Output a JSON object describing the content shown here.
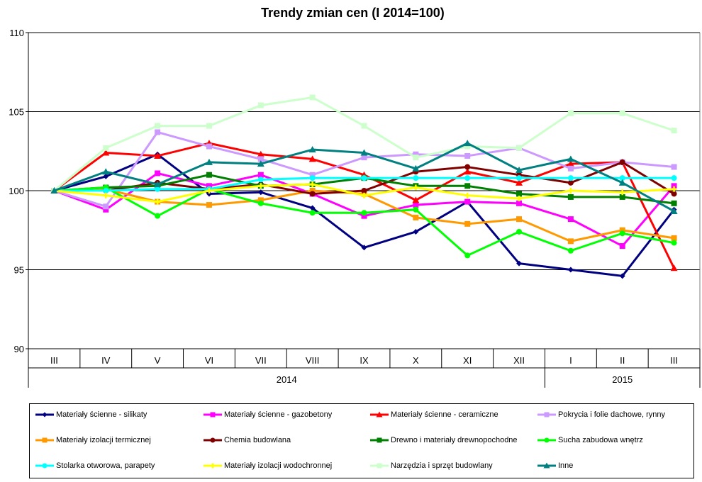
{
  "chart_data": {
    "type": "line",
    "title": "Trendy zmian cen (I 2014=100)",
    "categories": [
      "III",
      "IV",
      "V",
      "VI",
      "VII",
      "VIII",
      "IX",
      "X",
      "XI",
      "XII",
      "I",
      "II",
      "III"
    ],
    "year_labels": [
      {
        "label": "2014",
        "from": 0,
        "to": 9
      },
      {
        "label": "2015",
        "from": 10,
        "to": 12
      }
    ],
    "ylim": [
      90,
      110
    ],
    "yticks": [
      90,
      95,
      100,
      105,
      110
    ],
    "grid": true,
    "legend_position": "bottom",
    "series": [
      {
        "name": "Materiały ścienne - silikaty",
        "color": "#000080",
        "marker": "diamond",
        "values": [
          100,
          100.9,
          102.3,
          99.8,
          99.9,
          98.9,
          96.4,
          97.4,
          99.3,
          95.4,
          95.0,
          94.6,
          98.8
        ]
      },
      {
        "name": "Materiały ścienne - gazobetony",
        "color": "#ff00ff",
        "marker": "square",
        "values": [
          100,
          98.8,
          101.1,
          100.3,
          101.0,
          99.8,
          98.4,
          99.1,
          99.3,
          99.2,
          98.2,
          96.5,
          100.3
        ]
      },
      {
        "name": "Materiały ścienne - ceramiczne",
        "color": "#ff0000",
        "marker": "triangle",
        "values": [
          100,
          102.4,
          102.2,
          103.0,
          102.3,
          102.0,
          101.0,
          99.4,
          101.2,
          100.5,
          101.7,
          101.8,
          95.1
        ]
      },
      {
        "name": "Pokrycia i folie dachowe, rynny",
        "color": "#cc99ff",
        "marker": "square",
        "values": [
          100,
          99.0,
          103.7,
          102.8,
          102.0,
          101.0,
          102.1,
          102.3,
          102.2,
          102.7,
          101.4,
          101.8,
          101.5
        ]
      },
      {
        "name": "Materiały izolacji termicznej",
        "color": "#ff9900",
        "marker": "square",
        "values": [
          100,
          100.1,
          99.3,
          99.1,
          99.4,
          100.0,
          99.8,
          98.3,
          97.9,
          98.2,
          96.8,
          97.5,
          97.0
        ]
      },
      {
        "name": "Chemia budowlana",
        "color": "#800000",
        "marker": "circle",
        "values": [
          100,
          100.0,
          100.5,
          100.1,
          100.4,
          99.8,
          100.0,
          101.2,
          101.5,
          101.0,
          100.5,
          101.8,
          99.8
        ]
      },
      {
        "name": "Drewno i materiały drewnopochodne",
        "color": "#008000",
        "marker": "square",
        "values": [
          100,
          100.2,
          100.3,
          101.0,
          100.3,
          100.4,
          100.8,
          100.3,
          100.3,
          99.8,
          99.6,
          99.6,
          99.2
        ]
      },
      {
        "name": "Sucha zabudowa wnętrz",
        "color": "#00ff00",
        "marker": "circle",
        "values": [
          100,
          100.2,
          98.4,
          100.1,
          99.2,
          98.6,
          98.6,
          98.8,
          95.9,
          97.4,
          96.2,
          97.3,
          96.7
        ]
      },
      {
        "name": "Stolarka otworowa, parapety",
        "color": "#00ffff",
        "marker": "circle",
        "values": [
          100,
          100.0,
          100.1,
          100.1,
          100.7,
          100.8,
          100.8,
          100.8,
          100.8,
          100.8,
          100.8,
          100.8,
          100.8
        ]
      },
      {
        "name": "Materiały izolacji wodochronnej",
        "color": "#ffff00",
        "marker": "cross",
        "values": [
          100,
          99.7,
          99.3,
          100.0,
          100.3,
          100.4,
          99.7,
          100.2,
          99.7,
          99.5,
          100.0,
          99.9,
          100.1
        ]
      },
      {
        "name": "Narzędzia i sprzęt budowlany",
        "color": "#ccffcc",
        "marker": "square",
        "values": [
          100,
          102.7,
          104.1,
          104.1,
          105.4,
          105.9,
          104.1,
          102.1,
          102.8,
          102.7,
          104.9,
          104.9,
          103.8
        ]
      },
      {
        "name": "Inne",
        "color": "#008080",
        "marker": "triangle",
        "values": [
          100,
          101.2,
          100.4,
          101.8,
          101.7,
          102.6,
          102.4,
          101.4,
          103.0,
          101.3,
          102.0,
          100.5,
          98.7
        ]
      }
    ]
  }
}
